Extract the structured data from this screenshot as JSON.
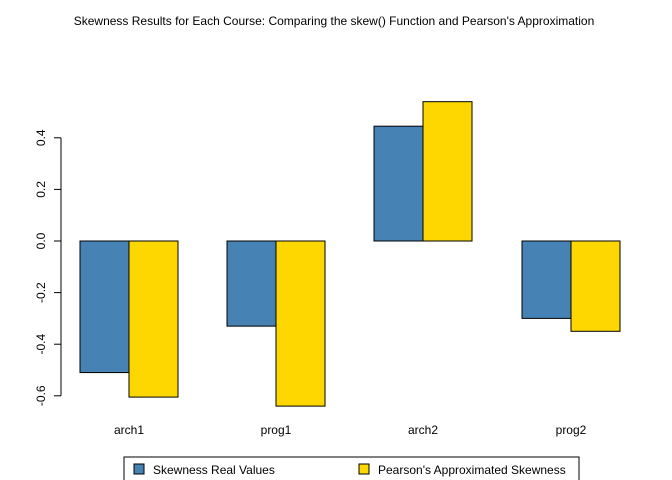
{
  "chart_data": {
    "type": "bar",
    "title": "Skewness Results for Each Course: Comparing the skew() Function and Pearson's Approximation",
    "xlabel": "",
    "ylabel": "",
    "categories": [
      "arch1",
      "prog1",
      "arch2",
      "prog2"
    ],
    "series": [
      {
        "name": "Skewness Real Values",
        "color": "#4682B4",
        "values": [
          -0.51,
          -0.33,
          0.445,
          -0.3
        ]
      },
      {
        "name": "Pearson's Approximated Skewness",
        "color": "#FFD700",
        "values": [
          -0.605,
          -0.64,
          0.54,
          -0.35
        ]
      }
    ],
    "yticks": [
      -0.6,
      -0.4,
      -0.2,
      0.0,
      0.2,
      0.4
    ],
    "ytick_labels": [
      "-0.6",
      "-0.4",
      "-0.2",
      "0.0",
      "0.2",
      "0.4"
    ],
    "ylim": [
      -0.64,
      0.54
    ],
    "grid": false,
    "legend_position": "bottom"
  }
}
